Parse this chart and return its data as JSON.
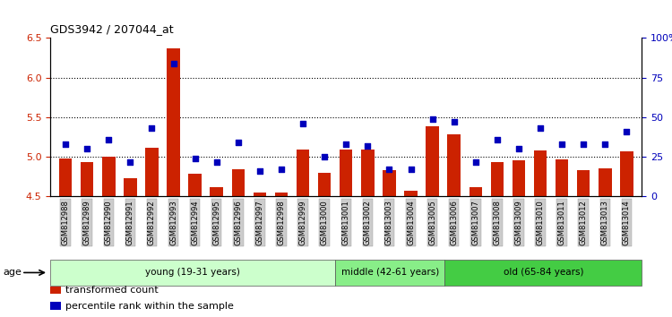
{
  "title": "GDS3942 / 207044_at",
  "samples": [
    "GSM812988",
    "GSM812989",
    "GSM812990",
    "GSM812991",
    "GSM812992",
    "GSM812993",
    "GSM812994",
    "GSM812995",
    "GSM812996",
    "GSM812997",
    "GSM812998",
    "GSM812999",
    "GSM813000",
    "GSM813001",
    "GSM813002",
    "GSM813003",
    "GSM813004",
    "GSM813005",
    "GSM813006",
    "GSM813007",
    "GSM813008",
    "GSM813009",
    "GSM813010",
    "GSM813011",
    "GSM813012",
    "GSM813013",
    "GSM813014"
  ],
  "bar_values": [
    4.98,
    4.93,
    5.0,
    4.73,
    5.12,
    6.37,
    4.79,
    4.62,
    4.84,
    4.55,
    4.55,
    5.09,
    4.8,
    5.09,
    5.09,
    4.83,
    4.57,
    5.39,
    5.29,
    4.62,
    4.93,
    4.96,
    5.08,
    4.97,
    4.83,
    4.86,
    5.07
  ],
  "dot_pct": [
    33,
    30,
    36,
    22,
    43,
    84,
    24,
    22,
    34,
    16,
    17,
    46,
    25,
    33,
    32,
    17,
    17,
    49,
    47,
    22,
    36,
    30,
    43,
    33,
    33,
    33,
    41
  ],
  "ylim": [
    4.5,
    6.5
  ],
  "yticks_left": [
    4.5,
    5.0,
    5.5,
    6.0,
    6.5
  ],
  "yticks_right_pct": [
    0,
    25,
    50,
    75,
    100
  ],
  "yticks_right_labels": [
    "0",
    "25",
    "50",
    "75",
    "100%"
  ],
  "bar_color": "#cc2200",
  "dot_color": "#0000bb",
  "groups": [
    {
      "label": "young (19-31 years)",
      "start": 0,
      "end": 13,
      "color": "#ccffcc"
    },
    {
      "label": "middle (42-61 years)",
      "start": 13,
      "end": 18,
      "color": "#88ee88"
    },
    {
      "label": "old (65-84 years)",
      "start": 18,
      "end": 27,
      "color": "#44cc44"
    }
  ],
  "legend_items": [
    {
      "color": "#cc2200",
      "label": "transformed count"
    },
    {
      "color": "#0000bb",
      "label": "percentile rank within the sample"
    }
  ],
  "age_label": "age"
}
